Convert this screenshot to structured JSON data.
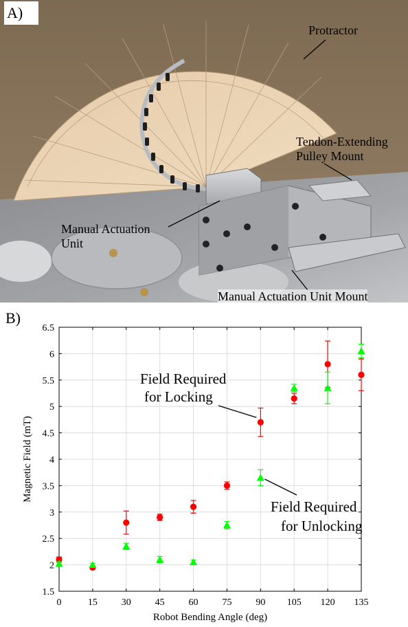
{
  "panel_a": {
    "label": "A)",
    "callouts": {
      "protractor": "Protractor",
      "tendon_line1": "Tendon-Extending",
      "tendon_line2": "Pulley Mount",
      "manual_line1": "Manual Actuation",
      "manual_line2": "Unit",
      "mount": "Manual Actuation Unit Mount"
    }
  },
  "panel_b": {
    "label": "B)"
  },
  "chart_data": {
    "type": "scatter",
    "xlabel": "Robot Bending Angle (deg)",
    "ylabel": "Magnetic Field (mT)",
    "xlim": [
      0,
      135
    ],
    "ylim": [
      1.5,
      6.5
    ],
    "xticks": [
      0,
      15,
      30,
      45,
      60,
      75,
      90,
      105,
      120,
      135
    ],
    "yticks": [
      1.5,
      2,
      2.5,
      3,
      3.5,
      4,
      4.5,
      5,
      5.5,
      6,
      6.5
    ],
    "ytick_labels": [
      "1.5",
      "2",
      "2.5",
      "3",
      "3.5",
      "4",
      "4.5",
      "5",
      "5.5",
      "6",
      "6.5"
    ],
    "grid": true,
    "series": [
      {
        "name": "Field Required for Locking",
        "color": "#ff0000",
        "marker": "circle",
        "x": [
          0,
          15,
          30,
          45,
          60,
          75,
          90,
          105,
          120,
          135
        ],
        "y": [
          2.1,
          1.95,
          2.8,
          2.9,
          3.1,
          3.5,
          4.7,
          5.15,
          5.8,
          5.6
        ],
        "err": [
          0.05,
          0.03,
          0.22,
          0.06,
          0.12,
          0.07,
          0.27,
          0.1,
          0.44,
          0.3
        ]
      },
      {
        "name": "Field Required for Unlocking",
        "color": "#00ff00",
        "marker": "triangle",
        "x": [
          0,
          15,
          30,
          45,
          60,
          75,
          90,
          105,
          120,
          135
        ],
        "y": [
          2.02,
          2.0,
          2.35,
          2.1,
          2.05,
          2.75,
          3.65,
          5.35,
          5.35,
          6.05
        ],
        "err": [
          0.04,
          0.03,
          0.06,
          0.06,
          0.04,
          0.07,
          0.15,
          0.07,
          0.3,
          0.13
        ]
      }
    ],
    "annotations": [
      {
        "line1": "Field Required",
        "line2": "for Locking"
      },
      {
        "line1": "Field Required",
        "line2": "for Unlocking"
      }
    ]
  }
}
